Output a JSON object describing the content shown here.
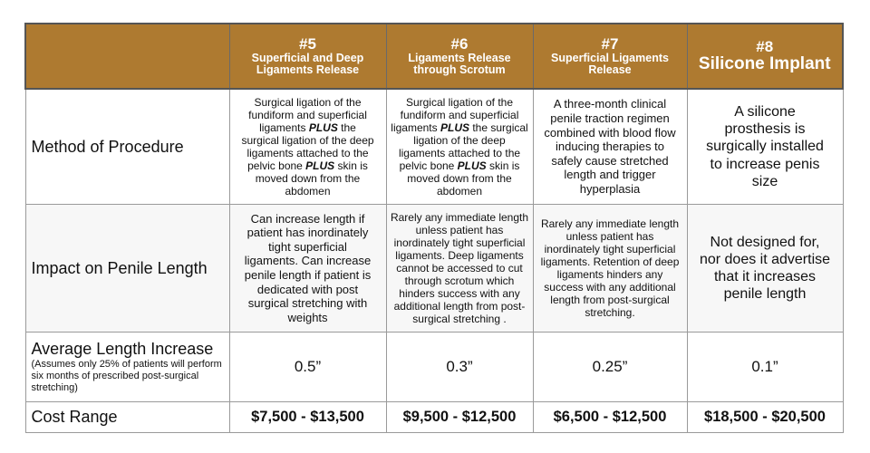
{
  "header": [
    {
      "num": "",
      "title": ""
    },
    {
      "num": "#5",
      "title": "Superficial and Deep Ligaments Release"
    },
    {
      "num": "#6",
      "title": "Ligaments Release through Scrotum"
    },
    {
      "num": "#7",
      "title": "Superficial Ligaments Release"
    },
    {
      "num": "#8",
      "title": "Silicone Implant"
    }
  ],
  "rows": [
    {
      "label": "Method of Procedure",
      "cells": [
        {
          "parts": [
            "Surgical ligation of the\nfundiform and superficial\nligaments ",
            "PLUS",
            " the\nsurgical ligation of the deep\nligaments attached to the\npelvic bone ",
            "PLUS",
            " skin is\nmoved down from the\nabdomen"
          ]
        },
        {
          "parts": [
            "Surgical ligation of the\nfundiform and superficial\nligaments ",
            "PLUS",
            " the surgical\nligation of the deep\nligaments attached to the\npelvic bone ",
            "PLUS",
            " skin is\nmoved down from the\nabdomen"
          ]
        },
        {
          "text": "A three-month clinical\npenile traction regimen\ncombined with blood flow\ninducing therapies to\nsafely cause stretched\nlength and trigger\nhyperplasia"
        },
        {
          "text": "A silicone\nprosthesis is\nsurgically installed\nto increase penis\nsize"
        }
      ]
    },
    {
      "label": "Impact on Penile Length",
      "cells": [
        {
          "text": "Can increase length if\npatient has inordinately\ntight superficial\nligaments.  Can increase\npenile length if patient is\ndedicated with post\nsurgical stretching with\nweights"
        },
        {
          "text": "Rarely any immediate length\nunless patient has\ninordinately tight superficial\nligaments. Deep ligaments\ncannot be accessed to cut\nthrough scrotum which\nhinders success with any\nadditional length from post-\nsurgical stretching ."
        },
        {
          "text": "Rarely any immediate length\nunless patient has\ninordinately tight superficial\nligaments. Retention of deep\nligaments hinders any\nsuccess with any additional\nlength from post-surgical\nstretching."
        },
        {
          "text": "Not designed for,\nnor does it advertise\nthat it increases\npenile length"
        }
      ]
    },
    {
      "label": "Average Length Increase",
      "note": "(Assumes only 25% of patients will perform six months of prescribed post-surgical stretching)",
      "cells": [
        "0.5”",
        "0.3”",
        "0.25”",
        "0.1”"
      ]
    },
    {
      "label": "Cost Range",
      "cells": [
        "$7,500 - $13,500",
        "$9,500 - $12,500",
        "$6,500 - $12,500",
        "$18,500 - $20,500"
      ]
    }
  ],
  "colors": {
    "header_bg": "#ae7a30",
    "header_text": "#ffffff"
  }
}
